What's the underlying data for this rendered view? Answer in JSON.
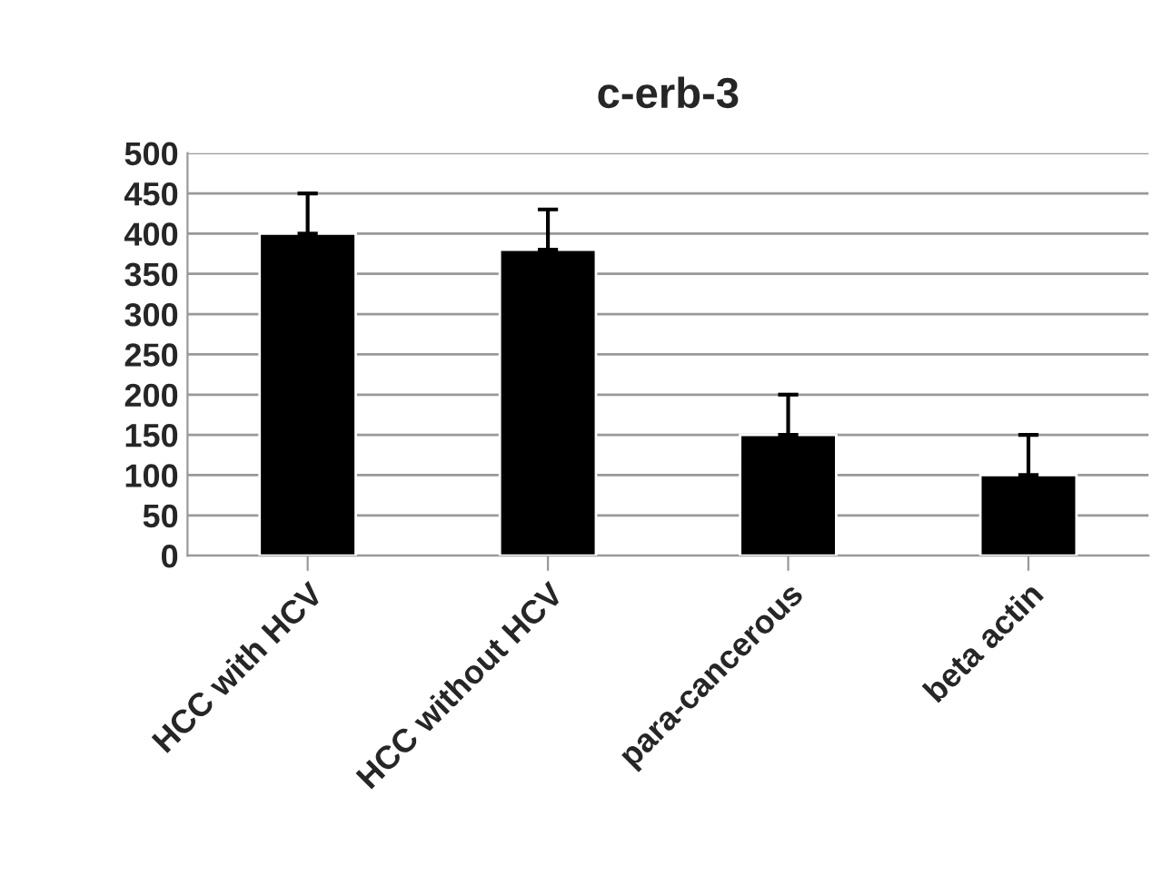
{
  "chart_data": {
    "type": "bar",
    "title": "c-erb-3",
    "categories": [
      "HCC with HCV",
      "HCC without HCV",
      "para-cancerous",
      "beta actin"
    ],
    "values": [
      400,
      380,
      150,
      100
    ],
    "errors": [
      [
        400,
        450
      ],
      [
        380,
        430
      ],
      [
        150,
        200
      ],
      [
        100,
        150
      ]
    ],
    "color": "#000000",
    "ylim": [
      0,
      500
    ],
    "yticks": [
      0,
      50,
      100,
      150,
      200,
      250,
      300,
      350,
      400,
      450,
      500
    ],
    "grid": "y",
    "legend": false
  }
}
